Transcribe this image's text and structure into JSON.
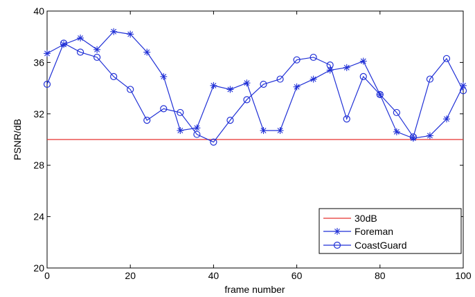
{
  "chart_data": {
    "type": "line",
    "title": "",
    "xlabel": "frame number",
    "ylabel": "PSNR/dB",
    "xlim": [
      0,
      100
    ],
    "ylim": [
      20,
      40
    ],
    "xticks": [
      0,
      20,
      40,
      60,
      80,
      100
    ],
    "yticks": [
      20,
      24,
      28,
      32,
      36,
      40
    ],
    "grid": false,
    "legend_position": "bottom-right",
    "series": [
      {
        "name": "30dB",
        "color": "#e8322d",
        "marker": "none",
        "x": [
          0,
          100
        ],
        "y": [
          30,
          30
        ]
      },
      {
        "name": "Foreman",
        "color": "#1f2fd6",
        "marker": "star",
        "x": [
          0,
          4,
          8,
          12,
          16,
          20,
          24,
          28,
          32,
          36,
          40,
          44,
          48,
          52,
          56,
          60,
          64,
          68,
          72,
          76,
          80,
          84,
          88,
          92,
          96,
          100
        ],
        "y": [
          36.7,
          37.4,
          37.9,
          37.0,
          38.4,
          38.2,
          36.8,
          34.9,
          30.7,
          30.9,
          34.2,
          33.9,
          34.4,
          30.7,
          30.7,
          34.1,
          34.7,
          35.4,
          35.6,
          36.1,
          33.5,
          30.6,
          30.1,
          30.3,
          31.6,
          34.2
        ]
      },
      {
        "name": "CoastGuard",
        "color": "#1f2fd6",
        "marker": "circle",
        "x": [
          0,
          4,
          8,
          12,
          16,
          20,
          24,
          28,
          32,
          36,
          40,
          44,
          48,
          52,
          56,
          60,
          64,
          68,
          72,
          76,
          80,
          84,
          88,
          92,
          96,
          100
        ],
        "y": [
          34.3,
          37.5,
          36.8,
          36.4,
          34.9,
          33.9,
          31.5,
          32.4,
          32.1,
          30.4,
          29.8,
          31.5,
          33.1,
          34.3,
          34.7,
          36.2,
          36.4,
          35.8,
          31.6,
          34.9,
          33.5,
          32.1,
          30.2,
          34.7,
          36.3,
          33.8
        ]
      }
    ]
  }
}
